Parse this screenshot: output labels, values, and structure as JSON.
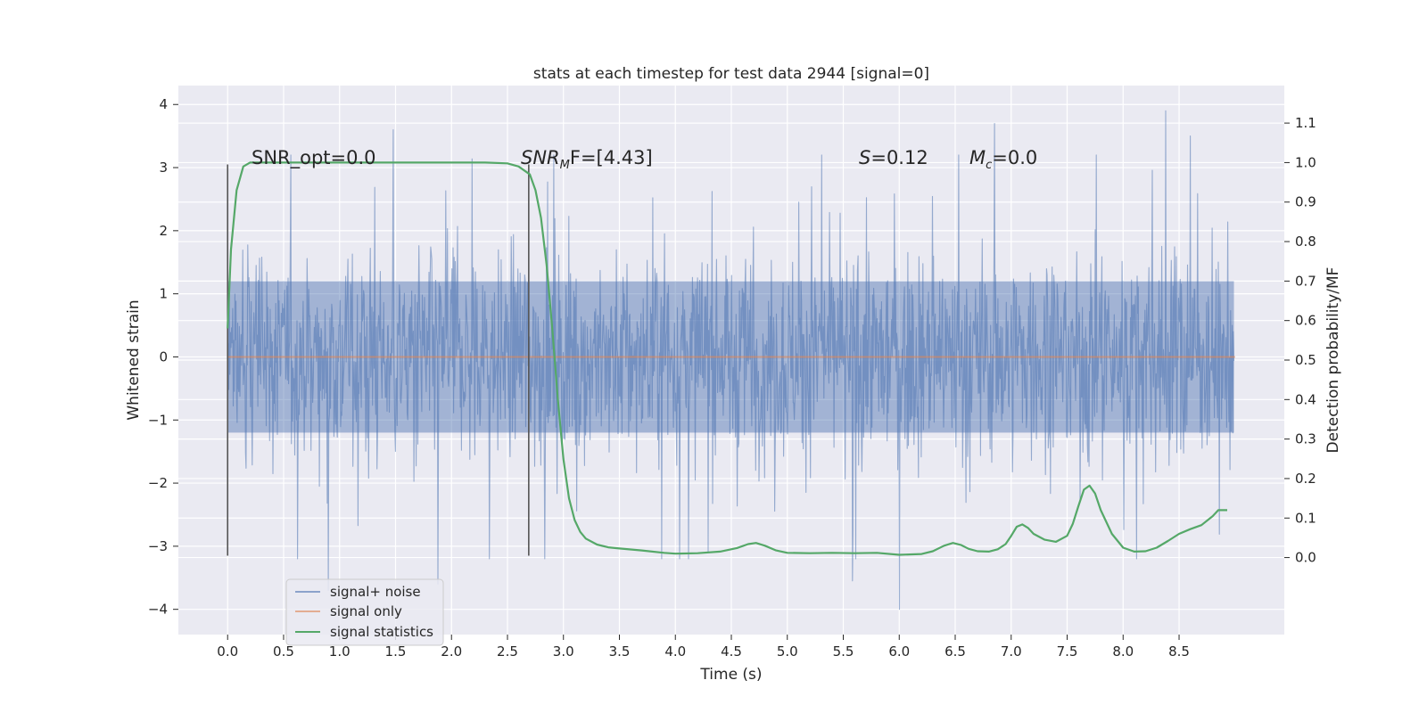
{
  "chart_data": {
    "type": "line",
    "title": "stats at each timestep for test data 2944 [signal=0]",
    "xlabel": "Time (s)",
    "ylabel": "Whitened strain",
    "y2label": "Detection probability/MF",
    "xlim": [
      -0.44,
      9.44
    ],
    "ylim": [
      -4.4,
      4.3
    ],
    "y2lim": [
      -0.195,
      1.195
    ],
    "xticks": [
      0.0,
      0.5,
      1.0,
      1.5,
      2.0,
      2.5,
      3.0,
      3.5,
      4.0,
      4.5,
      5.0,
      5.5,
      6.0,
      6.5,
      7.0,
      7.5,
      8.0,
      8.5
    ],
    "xtick_labels": [
      "0.0",
      "0.5",
      "1.0",
      "1.5",
      "2.0",
      "2.5",
      "3.0",
      "3.5",
      "4.0",
      "4.5",
      "5.0",
      "5.5",
      "6.0",
      "6.5",
      "7.0",
      "7.5",
      "8.0",
      "8.5"
    ],
    "yticks": [
      4,
      3,
      2,
      1,
      0,
      -1,
      -2,
      -3,
      -4
    ],
    "ytick_labels": [
      "4",
      "3",
      "2",
      "1",
      "0",
      "−1",
      "−2",
      "−3",
      "−4"
    ],
    "y2ticks": [
      1.1,
      1.0,
      0.9,
      0.8,
      0.7,
      0.6,
      0.5,
      0.4,
      0.3,
      0.2,
      0.1,
      0.0
    ],
    "y2tick_labels": [
      "1.1",
      "1.0",
      "0.9",
      "0.8",
      "0.7",
      "0.6",
      "0.5",
      "0.4",
      "0.3",
      "0.2",
      "0.1",
      "0.0"
    ],
    "grid": true,
    "legend_position": "bottom-left",
    "colors": {
      "background": "#eaeaf2",
      "grid": "#ffffff",
      "noise": "#4c72b0",
      "signal": "#dd8452",
      "stats": "#55a868",
      "vline": "#555555"
    },
    "series": [
      {
        "name": "signal+ noise",
        "axis": "left",
        "kind": "noise",
        "x_range": [
          0.0,
          8.99
        ],
        "sample_count": 1800,
        "core_amplitude": 1.2,
        "max_abs": 4.0,
        "peaks": [
          {
            "x": 1.48,
            "y": 3.6
          },
          {
            "x": 6.85,
            "y": 3.7
          },
          {
            "x": 8.38,
            "y": 3.9
          },
          {
            "x": 8.6,
            "y": 3.5
          },
          {
            "x": 6.0,
            "y": -4.0
          },
          {
            "x": 0.9,
            "y": -3.7
          },
          {
            "x": 1.88,
            "y": -3.6
          },
          {
            "x": 5.58,
            "y": -3.55
          }
        ]
      },
      {
        "name": "signal only",
        "axis": "left",
        "x": [
          0.0,
          9.0
        ],
        "y": [
          0.0,
          0.0
        ]
      },
      {
        "name": "signal statistics",
        "axis": "right",
        "x": [
          0.0,
          0.03,
          0.08,
          0.14,
          0.2,
          0.3,
          0.5,
          1.0,
          1.5,
          2.0,
          2.3,
          2.5,
          2.6,
          2.7,
          2.75,
          2.8,
          2.85,
          2.9,
          2.95,
          3.0,
          3.05,
          3.1,
          3.15,
          3.2,
          3.3,
          3.4,
          3.5,
          3.7,
          3.9,
          4.0,
          4.2,
          4.4,
          4.55,
          4.65,
          4.72,
          4.8,
          4.9,
          5.0,
          5.2,
          5.4,
          5.6,
          5.8,
          6.0,
          6.2,
          6.3,
          6.4,
          6.48,
          6.55,
          6.62,
          6.7,
          6.8,
          6.88,
          6.95,
          7.0,
          7.05,
          7.1,
          7.15,
          7.2,
          7.3,
          7.4,
          7.5,
          7.55,
          7.6,
          7.65,
          7.7,
          7.75,
          7.8,
          7.9,
          8.0,
          8.1,
          8.2,
          8.3,
          8.4,
          8.5,
          8.6,
          8.7,
          8.8,
          8.85,
          8.93
        ],
        "y": [
          0.58,
          0.78,
          0.93,
          0.99,
          1.0,
          1.0,
          1.0,
          1.0,
          1.0,
          1.0,
          1.0,
          0.998,
          0.99,
          0.97,
          0.93,
          0.86,
          0.74,
          0.58,
          0.4,
          0.25,
          0.15,
          0.095,
          0.065,
          0.048,
          0.033,
          0.026,
          0.023,
          0.018,
          0.012,
          0.01,
          0.011,
          0.015,
          0.024,
          0.034,
          0.037,
          0.03,
          0.018,
          0.012,
          0.011,
          0.012,
          0.011,
          0.012,
          0.007,
          0.009,
          0.016,
          0.03,
          0.037,
          0.032,
          0.022,
          0.016,
          0.015,
          0.021,
          0.034,
          0.055,
          0.078,
          0.084,
          0.075,
          0.06,
          0.045,
          0.04,
          0.055,
          0.085,
          0.13,
          0.172,
          0.182,
          0.162,
          0.12,
          0.06,
          0.025,
          0.015,
          0.016,
          0.025,
          0.042,
          0.06,
          0.072,
          0.082,
          0.105,
          0.12,
          0.12
        ]
      }
    ],
    "vlines": [
      {
        "x": 0.0,
        "ymin": -3.15,
        "ymax": 3.05
      },
      {
        "x": 2.69,
        "ymin": -3.15,
        "ymax": 3.05
      }
    ],
    "annotations": [
      {
        "text": "SNR_opt=0.0",
        "x": 0.2,
        "y": 3.0,
        "italic": false
      },
      {
        "base": "SNR",
        "sub": "M",
        "rest": "F=[4.43]",
        "x": 2.6,
        "y": 3.0,
        "italic": true
      },
      {
        "base": "S",
        "sub": "",
        "rest": "=0.12",
        "x": 5.6,
        "y": 3.0,
        "italic": true
      },
      {
        "base": "M",
        "sub": "c",
        "rest": "=0.0",
        "x": 6.6,
        "y": 3.0,
        "italic": true
      }
    ],
    "legend": [
      "signal+ noise",
      "signal only",
      "signal statistics"
    ]
  }
}
